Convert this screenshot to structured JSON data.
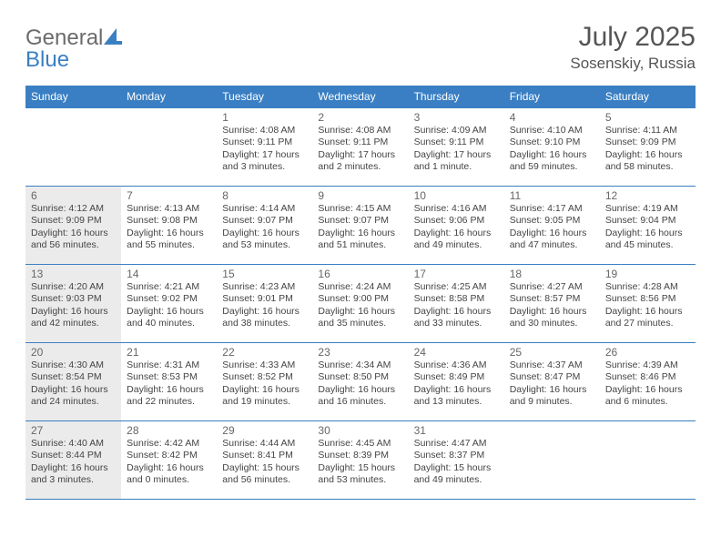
{
  "logo": {
    "word1": "General",
    "word2": "Blue"
  },
  "title": "July 2025",
  "location": "Sosenskiy, Russia",
  "colors": {
    "header_bg": "#3a7fc3",
    "header_text": "#ffffff",
    "border": "#3a7fc3",
    "shaded_bg": "#ebebeb",
    "body_text": "#444444",
    "title_text": "#555555",
    "logo_gray": "#6b6b6b",
    "logo_blue": "#3a7fc3"
  },
  "weekdays": [
    "Sunday",
    "Monday",
    "Tuesday",
    "Wednesday",
    "Thursday",
    "Friday",
    "Saturday"
  ],
  "weeks": [
    [
      {
        "n": "",
        "sunrise": "",
        "sunset": "",
        "daylight": "",
        "shaded": false
      },
      {
        "n": "",
        "sunrise": "",
        "sunset": "",
        "daylight": "",
        "shaded": false
      },
      {
        "n": "1",
        "sunrise": "Sunrise: 4:08 AM",
        "sunset": "Sunset: 9:11 PM",
        "daylight": "Daylight: 17 hours and 3 minutes.",
        "shaded": false
      },
      {
        "n": "2",
        "sunrise": "Sunrise: 4:08 AM",
        "sunset": "Sunset: 9:11 PM",
        "daylight": "Daylight: 17 hours and 2 minutes.",
        "shaded": false
      },
      {
        "n": "3",
        "sunrise": "Sunrise: 4:09 AM",
        "sunset": "Sunset: 9:11 PM",
        "daylight": "Daylight: 17 hours and 1 minute.",
        "shaded": false
      },
      {
        "n": "4",
        "sunrise": "Sunrise: 4:10 AM",
        "sunset": "Sunset: 9:10 PM",
        "daylight": "Daylight: 16 hours and 59 minutes.",
        "shaded": false
      },
      {
        "n": "5",
        "sunrise": "Sunrise: 4:11 AM",
        "sunset": "Sunset: 9:09 PM",
        "daylight": "Daylight: 16 hours and 58 minutes.",
        "shaded": false
      }
    ],
    [
      {
        "n": "6",
        "sunrise": "Sunrise: 4:12 AM",
        "sunset": "Sunset: 9:09 PM",
        "daylight": "Daylight: 16 hours and 56 minutes.",
        "shaded": true
      },
      {
        "n": "7",
        "sunrise": "Sunrise: 4:13 AM",
        "sunset": "Sunset: 9:08 PM",
        "daylight": "Daylight: 16 hours and 55 minutes.",
        "shaded": false
      },
      {
        "n": "8",
        "sunrise": "Sunrise: 4:14 AM",
        "sunset": "Sunset: 9:07 PM",
        "daylight": "Daylight: 16 hours and 53 minutes.",
        "shaded": false
      },
      {
        "n": "9",
        "sunrise": "Sunrise: 4:15 AM",
        "sunset": "Sunset: 9:07 PM",
        "daylight": "Daylight: 16 hours and 51 minutes.",
        "shaded": false
      },
      {
        "n": "10",
        "sunrise": "Sunrise: 4:16 AM",
        "sunset": "Sunset: 9:06 PM",
        "daylight": "Daylight: 16 hours and 49 minutes.",
        "shaded": false
      },
      {
        "n": "11",
        "sunrise": "Sunrise: 4:17 AM",
        "sunset": "Sunset: 9:05 PM",
        "daylight": "Daylight: 16 hours and 47 minutes.",
        "shaded": false
      },
      {
        "n": "12",
        "sunrise": "Sunrise: 4:19 AM",
        "sunset": "Sunset: 9:04 PM",
        "daylight": "Daylight: 16 hours and 45 minutes.",
        "shaded": false
      }
    ],
    [
      {
        "n": "13",
        "sunrise": "Sunrise: 4:20 AM",
        "sunset": "Sunset: 9:03 PM",
        "daylight": "Daylight: 16 hours and 42 minutes.",
        "shaded": true
      },
      {
        "n": "14",
        "sunrise": "Sunrise: 4:21 AM",
        "sunset": "Sunset: 9:02 PM",
        "daylight": "Daylight: 16 hours and 40 minutes.",
        "shaded": false
      },
      {
        "n": "15",
        "sunrise": "Sunrise: 4:23 AM",
        "sunset": "Sunset: 9:01 PM",
        "daylight": "Daylight: 16 hours and 38 minutes.",
        "shaded": false
      },
      {
        "n": "16",
        "sunrise": "Sunrise: 4:24 AM",
        "sunset": "Sunset: 9:00 PM",
        "daylight": "Daylight: 16 hours and 35 minutes.",
        "shaded": false
      },
      {
        "n": "17",
        "sunrise": "Sunrise: 4:25 AM",
        "sunset": "Sunset: 8:58 PM",
        "daylight": "Daylight: 16 hours and 33 minutes.",
        "shaded": false
      },
      {
        "n": "18",
        "sunrise": "Sunrise: 4:27 AM",
        "sunset": "Sunset: 8:57 PM",
        "daylight": "Daylight: 16 hours and 30 minutes.",
        "shaded": false
      },
      {
        "n": "19",
        "sunrise": "Sunrise: 4:28 AM",
        "sunset": "Sunset: 8:56 PM",
        "daylight": "Daylight: 16 hours and 27 minutes.",
        "shaded": false
      }
    ],
    [
      {
        "n": "20",
        "sunrise": "Sunrise: 4:30 AM",
        "sunset": "Sunset: 8:54 PM",
        "daylight": "Daylight: 16 hours and 24 minutes.",
        "shaded": true
      },
      {
        "n": "21",
        "sunrise": "Sunrise: 4:31 AM",
        "sunset": "Sunset: 8:53 PM",
        "daylight": "Daylight: 16 hours and 22 minutes.",
        "shaded": false
      },
      {
        "n": "22",
        "sunrise": "Sunrise: 4:33 AM",
        "sunset": "Sunset: 8:52 PM",
        "daylight": "Daylight: 16 hours and 19 minutes.",
        "shaded": false
      },
      {
        "n": "23",
        "sunrise": "Sunrise: 4:34 AM",
        "sunset": "Sunset: 8:50 PM",
        "daylight": "Daylight: 16 hours and 16 minutes.",
        "shaded": false
      },
      {
        "n": "24",
        "sunrise": "Sunrise: 4:36 AM",
        "sunset": "Sunset: 8:49 PM",
        "daylight": "Daylight: 16 hours and 13 minutes.",
        "shaded": false
      },
      {
        "n": "25",
        "sunrise": "Sunrise: 4:37 AM",
        "sunset": "Sunset: 8:47 PM",
        "daylight": "Daylight: 16 hours and 9 minutes.",
        "shaded": false
      },
      {
        "n": "26",
        "sunrise": "Sunrise: 4:39 AM",
        "sunset": "Sunset: 8:46 PM",
        "daylight": "Daylight: 16 hours and 6 minutes.",
        "shaded": false
      }
    ],
    [
      {
        "n": "27",
        "sunrise": "Sunrise: 4:40 AM",
        "sunset": "Sunset: 8:44 PM",
        "daylight": "Daylight: 16 hours and 3 minutes.",
        "shaded": true
      },
      {
        "n": "28",
        "sunrise": "Sunrise: 4:42 AM",
        "sunset": "Sunset: 8:42 PM",
        "daylight": "Daylight: 16 hours and 0 minutes.",
        "shaded": false
      },
      {
        "n": "29",
        "sunrise": "Sunrise: 4:44 AM",
        "sunset": "Sunset: 8:41 PM",
        "daylight": "Daylight: 15 hours and 56 minutes.",
        "shaded": false
      },
      {
        "n": "30",
        "sunrise": "Sunrise: 4:45 AM",
        "sunset": "Sunset: 8:39 PM",
        "daylight": "Daylight: 15 hours and 53 minutes.",
        "shaded": false
      },
      {
        "n": "31",
        "sunrise": "Sunrise: 4:47 AM",
        "sunset": "Sunset: 8:37 PM",
        "daylight": "Daylight: 15 hours and 49 minutes.",
        "shaded": false
      },
      {
        "n": "",
        "sunrise": "",
        "sunset": "",
        "daylight": "",
        "shaded": false
      },
      {
        "n": "",
        "sunrise": "",
        "sunset": "",
        "daylight": "",
        "shaded": false
      }
    ]
  ]
}
